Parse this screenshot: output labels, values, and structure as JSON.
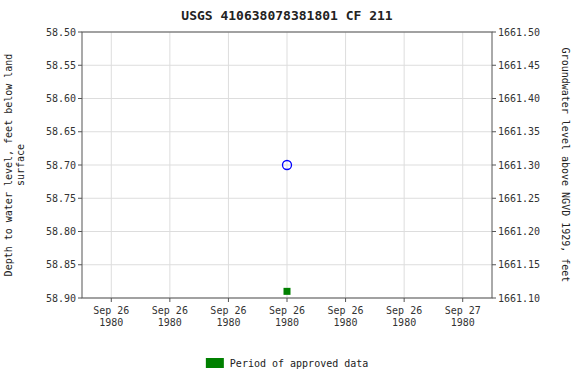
{
  "chart_data": {
    "type": "scatter",
    "title": "USGS 410638078381801 CF   211",
    "y_label": "Depth to water level, feet below land\nsurface",
    "y2_label": "Groundwater level above NGVD 1929, feet",
    "categories": [
      "Sep 26\n1980",
      "Sep 26\n1980",
      "Sep 26\n1980",
      "Sep 26\n1980",
      "Sep 26\n1980",
      "Sep 26\n1980",
      "Sep 27\n1980"
    ],
    "ylim": [
      58.9,
      58.5
    ],
    "yticks": [
      {
        "value": 58.5,
        "label": "58.50"
      },
      {
        "value": 58.55,
        "label": "58.55"
      },
      {
        "value": 58.6,
        "label": "58.60"
      },
      {
        "value": 58.65,
        "label": "58.65"
      },
      {
        "value": 58.7,
        "label": "58.70"
      },
      {
        "value": 58.75,
        "label": "58.75"
      },
      {
        "value": 58.8,
        "label": "58.80"
      },
      {
        "value": 58.85,
        "label": "58.85"
      },
      {
        "value": 58.9,
        "label": "58.90"
      }
    ],
    "y2lim": [
      1661.1,
      1661.5
    ],
    "y2ticks": [
      {
        "value": 1661.5,
        "label": "1661.50"
      },
      {
        "value": 1661.45,
        "label": "1661.45"
      },
      {
        "value": 1661.4,
        "label": "1661.40"
      },
      {
        "value": 1661.35,
        "label": "1661.35"
      },
      {
        "value": 1661.3,
        "label": "1661.30"
      },
      {
        "value": 1661.25,
        "label": "1661.25"
      },
      {
        "value": 1661.2,
        "label": "1661.20"
      },
      {
        "value": 1661.15,
        "label": "1661.15"
      },
      {
        "value": 1661.1,
        "label": "1661.10"
      }
    ],
    "grid": true,
    "legend": "bottom",
    "series": [
      {
        "color": "blue",
        "marker": "open-circle",
        "values": [
          null,
          null,
          null,
          58.7,
          null,
          null,
          null
        ]
      },
      {
        "name": "Period of approved data",
        "color": "#008000",
        "marker": "square",
        "values": [
          null,
          null,
          null,
          58.89,
          null,
          null,
          null
        ]
      }
    ]
  }
}
